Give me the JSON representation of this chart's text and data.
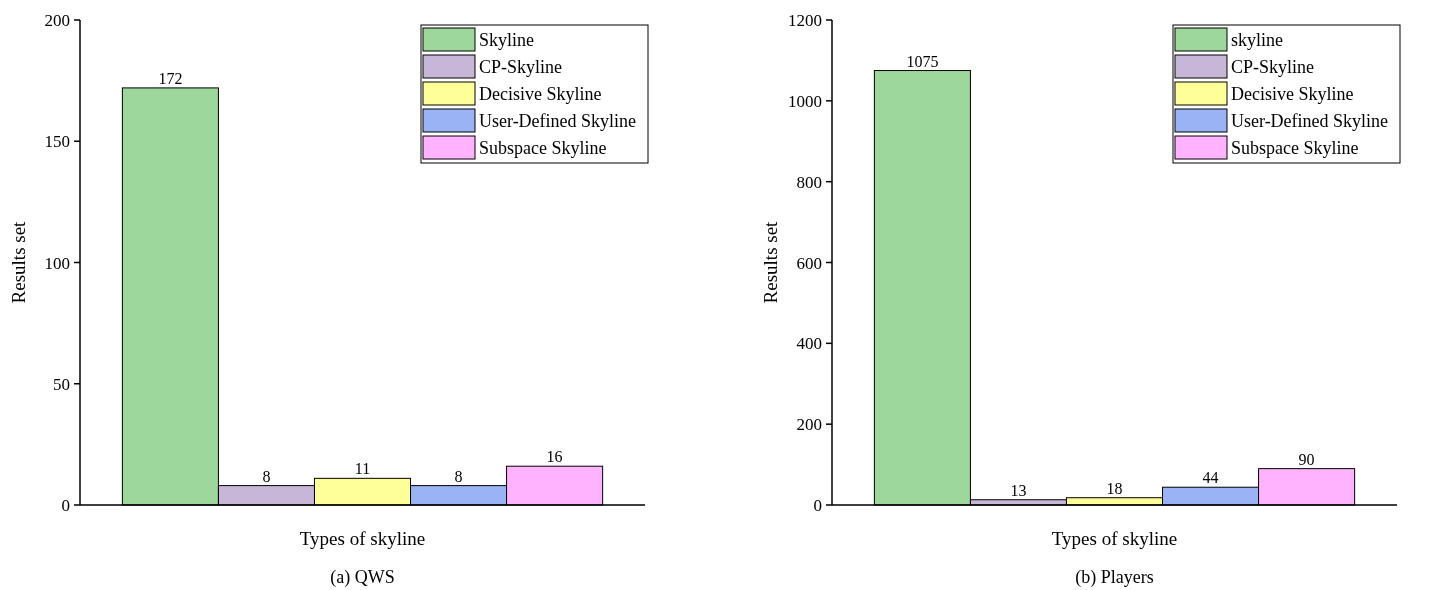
{
  "chart_data": [
    {
      "type": "bar",
      "title": "(a) QWS",
      "xlabel": "Types of skyline",
      "ylabel": "Results set",
      "categories": [
        null
      ],
      "ylim": [
        0,
        200
      ],
      "yticks": [
        0,
        50,
        100,
        150,
        200
      ],
      "data_labels": true,
      "legend": "top right",
      "series": [
        {
          "name": "Skyline",
          "color": "#9dd79b",
          "values": [
            172
          ]
        },
        {
          "name": "CP-Skyline",
          "color": "#c8b6d9",
          "values": [
            8
          ]
        },
        {
          "name": "Decisive Skyline",
          "color": "#ffff99",
          "values": [
            11
          ]
        },
        {
          "name": "User-Defined Skyline",
          "color": "#99b3f5",
          "values": [
            8
          ]
        },
        {
          "name": "Subspace Skyline",
          "color": "#ffb3ff",
          "values": [
            16
          ]
        }
      ]
    },
    {
      "type": "bar",
      "title": "(b) Players",
      "xlabel": "Types of skyline",
      "ylabel": "Results set",
      "categories": [
        null
      ],
      "ylim": [
        0,
        1200
      ],
      "yticks": [
        0,
        200,
        400,
        600,
        800,
        1000,
        1200
      ],
      "data_labels": true,
      "legend": "top right",
      "series": [
        {
          "name": "skyline",
          "color": "#9dd79b",
          "values": [
            1075
          ]
        },
        {
          "name": "CP-Skyline",
          "color": "#c8b6d9",
          "values": [
            13
          ]
        },
        {
          "name": "Decisive Skyline",
          "color": "#ffff99",
          "values": [
            18
          ]
        },
        {
          "name": "User-Defined Skyline",
          "color": "#99b3f5",
          "values": [
            44
          ]
        },
        {
          "name": "Subspace Skyline",
          "color": "#ffb3ff",
          "values": [
            90
          ]
        }
      ]
    }
  ]
}
